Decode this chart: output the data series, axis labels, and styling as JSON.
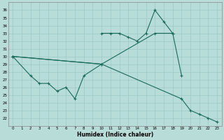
{
  "xlabel": "Humidex (Indice chaleur)",
  "bg_color": "#b8dcd8",
  "grid_color": "#9cc8c4",
  "line_color": "#1a6b5a",
  "xlim": [
    -0.5,
    23.5
  ],
  "ylim": [
    21.0,
    37.0
  ],
  "yticks": [
    22,
    23,
    24,
    25,
    26,
    27,
    28,
    29,
    30,
    31,
    32,
    33,
    34,
    35,
    36
  ],
  "xticks": [
    0,
    1,
    2,
    3,
    4,
    5,
    6,
    7,
    8,
    9,
    10,
    11,
    12,
    13,
    14,
    15,
    16,
    17,
    18,
    19,
    20,
    21,
    22,
    23
  ],
  "lineA_x": [
    10,
    11,
    12,
    13,
    14,
    15,
    16,
    17,
    18
  ],
  "lineA_y": [
    33.0,
    33.0,
    33.0,
    32.5,
    32.0,
    33.0,
    36.0,
    34.5,
    33.0
  ],
  "lineB_x": [
    0,
    10,
    16,
    18,
    19
  ],
  "lineB_y": [
    30.0,
    29.0,
    33.0,
    33.0,
    27.5
  ],
  "lineC_x": [
    0,
    2,
    3,
    4,
    5,
    6,
    7,
    8,
    10
  ],
  "lineC_y": [
    30.0,
    27.5,
    26.5,
    26.5,
    25.5,
    26.0,
    24.5,
    27.5,
    29.0
  ],
  "lineD_x": [
    0,
    10,
    19,
    20,
    21,
    22,
    23
  ],
  "lineD_y": [
    30.0,
    29.0,
    24.5,
    23.0,
    22.5,
    22.0,
    21.5
  ]
}
